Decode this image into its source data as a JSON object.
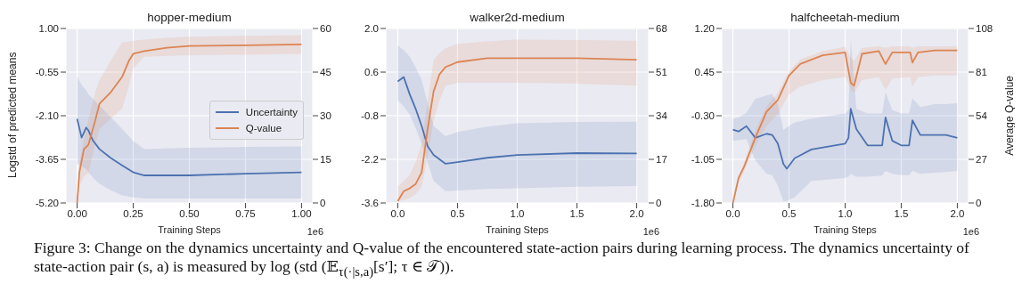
{
  "chart_data": [
    {
      "type": "line",
      "title": "hopper-medium",
      "xlabel": "Training Steps",
      "ylabel": "Logstd of predicted means",
      "annotations": [
        "1e6",
        "Figure 3: Change on the dynamics uncertainty and Q-value of the encountered state-action pairs during learning process. The dynamics uncertainty of state-action pair (s, a) is measured by log (std (𝔼$_{τ(·|s,a)}$[s′]; τ ∈ 𝒯))."
      ],
      "xlim": [
        -0.05,
        1.05
      ],
      "xticks": [
        {
          "value": 0,
          "label": "0.00"
        },
        0.25,
        {
          "value": 0.5,
          "label": "0.50"
        },
        0.75,
        {
          "value": 1,
          "label": "1.00"
        }
      ],
      "ylim": [
        -5.2,
        1
      ],
      "yticks": [
        {
          "value": -5.2,
          "label": "-5.20"
        },
        -3.65,
        {
          "value": -2.1,
          "label": "-2.10"
        },
        -0.55,
        {
          "value": 1,
          "label": "1.00"
        }
      ],
      "y2lim": [
        0,
        60
      ],
      "y2ticks": [
        0,
        15,
        30,
        45,
        60
      ],
      "grid": true,
      "legend": "right",
      "series": [
        {
          "name": "Uncertainty",
          "color": "#4c72b0",
          "axis": "y",
          "x": [
            0,
            0.02,
            0.04,
            0.05,
            0.07,
            0.1,
            0.15,
            0.2,
            0.25,
            0.3,
            0.5,
            0.75,
            1.0
          ],
          "values": [
            -2.21,
            -2.88,
            -2.52,
            -2.62,
            -2.98,
            -3.29,
            -3.6,
            -3.86,
            -4.11,
            -4.22,
            -4.22,
            -4.16,
            -4.11
          ],
          "upper": [
            -0.72,
            -1.0,
            -1.2,
            -1.34,
            -1.5,
            -1.75,
            -2.15,
            -2.57,
            -3.0,
            -3.29,
            -3.24,
            -3.21,
            -3.19
          ],
          "lower": [
            -3.8,
            -3.9,
            -4.0,
            -4.11,
            -4.3,
            -4.52,
            -4.75,
            -4.93,
            -5.0,
            -5.04,
            -5.04,
            -5.04,
            -5.04
          ]
        },
        {
          "name": "Q-value",
          "color": "#dd8452",
          "axis": "y2",
          "x": [
            0,
            0.01,
            0.03,
            0.05,
            0.08,
            0.1,
            0.15,
            0.2,
            0.23,
            0.25,
            0.3,
            0.4,
            0.5,
            0.75,
            1.0
          ],
          "values": [
            0,
            10.5,
            18.5,
            20,
            28.2,
            34.2,
            38.1,
            43.3,
            48.8,
            51.3,
            52.2,
            53.4,
            54,
            54.2,
            54.5
          ],
          "upper": [
            0,
            14,
            22,
            28.4,
            38,
            42.3,
            49,
            55.2,
            55.5,
            55.8,
            56.2,
            56.8,
            57.2,
            57.5,
            57.7
          ],
          "lower": [
            0,
            6,
            9,
            10.5,
            20,
            25.4,
            29,
            32.4,
            40,
            46.3,
            50.3,
            50.6,
            50.8,
            51,
            51.3
          ]
        }
      ]
    },
    {
      "type": "line",
      "title": "walker2d-medium",
      "xlabel": "Training Steps",
      "annotations": [
        "1e6"
      ],
      "xlim": [
        -0.1,
        2.1
      ],
      "xticks": [
        {
          "value": 0,
          "label": "0.0"
        },
        0.5,
        {
          "value": 1,
          "label": "1.0"
        },
        1.5,
        {
          "value": 2,
          "label": "2.0"
        }
      ],
      "ylim": [
        -3.6,
        2
      ],
      "yticks": [
        -3.6,
        -2.2,
        -0.8,
        0.6,
        {
          "value": 2,
          "label": "2.0"
        }
      ],
      "y2lim": [
        0,
        68
      ],
      "y2ticks": [
        0,
        17,
        34,
        51,
        68
      ],
      "grid": true,
      "series": [
        {
          "color": "#4c72b0",
          "axis": "y",
          "x": [
            0,
            0.05,
            0.1,
            0.15,
            0.2,
            0.25,
            0.3,
            0.4,
            0.5,
            0.75,
            1.0,
            1.5,
            2.0
          ],
          "values": [
            0.3,
            0.44,
            -0.11,
            -0.58,
            -1.13,
            -1.78,
            -2.06,
            -2.34,
            -2.29,
            -2.15,
            -2.06,
            -2.0,
            -2.01
          ],
          "upper": [
            1.46,
            1.3,
            1.09,
            0.75,
            0.35,
            -0.4,
            -1.13,
            -1.46,
            -1.32,
            -1.15,
            -1.04,
            -1.0,
            -0.99
          ],
          "lower": [
            -0.3,
            -0.5,
            -0.76,
            -1.2,
            -1.69,
            -2.3,
            -2.89,
            -3.22,
            -3.2,
            -3.15,
            -3.13,
            -3.08,
            -3.06
          ]
        },
        {
          "color": "#dd8452",
          "axis": "y2",
          "x": [
            0,
            0.05,
            0.1,
            0.15,
            0.2,
            0.25,
            0.3,
            0.35,
            0.4,
            0.5,
            0.75,
            1.0,
            1.5,
            2.0
          ],
          "values": [
            0.7,
            4.6,
            5.7,
            7.4,
            11.9,
            28.8,
            43.5,
            50.2,
            53,
            54.9,
            56.4,
            56.4,
            56.4,
            55.8
          ],
          "upper": [
            6.3,
            8.5,
            10.8,
            16,
            23.2,
            40,
            55.8,
            58.5,
            60.3,
            62,
            63,
            63.7,
            63.5,
            63.2
          ],
          "lower": [
            0.7,
            1.2,
            1.8,
            3.5,
            6.3,
            18,
            32.2,
            40,
            45.7,
            46.8,
            46.8,
            46.8,
            46.5,
            45.7
          ]
        }
      ]
    },
    {
      "type": "line",
      "title": "halfcheetah-medium",
      "xlabel": "Training Steps",
      "y2label": "Average Q-value",
      "annotations": [
        "1e6"
      ],
      "xlim": [
        -0.1,
        2.1
      ],
      "xticks": [
        {
          "value": 0,
          "label": "0.0"
        },
        0.5,
        {
          "value": 1,
          "label": "1.0"
        },
        1.5,
        {
          "value": 2,
          "label": "2.0"
        }
      ],
      "ylim": [
        -1.8,
        1.2
      ],
      "yticks": [
        {
          "value": -1.8,
          "label": "-1.80"
        },
        -1.05,
        {
          "value": -0.3,
          "label": "-0.30"
        },
        0.45,
        {
          "value": 1.2,
          "label": "1.20"
        }
      ],
      "y2lim": [
        0,
        108
      ],
      "y2ticks": [
        0,
        27,
        54,
        81,
        108
      ],
      "grid": true,
      "series": [
        {
          "color": "#4c72b0",
          "axis": "y",
          "x": [
            0,
            0.05,
            0.12,
            0.2,
            0.3,
            0.35,
            0.4,
            0.45,
            0.48,
            0.55,
            0.7,
            1.0,
            1.03,
            1.05,
            1.1,
            1.2,
            1.33,
            1.36,
            1.42,
            1.5,
            1.57,
            1.6,
            1.67,
            1.8,
            1.9,
            2.0
          ],
          "values": [
            -0.54,
            -0.57,
            -0.48,
            -0.68,
            -0.61,
            -0.63,
            -0.78,
            -1.13,
            -1.21,
            -1.03,
            -0.88,
            -0.78,
            -0.68,
            -0.18,
            -0.53,
            -0.81,
            -0.81,
            -0.33,
            -0.73,
            -0.81,
            -0.81,
            -0.38,
            -0.63,
            -0.63,
            -0.63,
            -0.68
          ],
          "upper": [
            -0.35,
            -0.33,
            -0.25,
            -0.01,
            0.05,
            0.07,
            -0.1,
            -0.55,
            -0.5,
            -0.42,
            -0.35,
            -0.26,
            -0.2,
            1.01,
            -0.18,
            -0.26,
            -0.26,
            0.1,
            -0.2,
            -0.26,
            -0.26,
            0.0,
            -0.15,
            -0.1,
            -0.1,
            -0.08
          ],
          "lower": [
            -0.73,
            -0.72,
            -0.7,
            -1.07,
            -1.3,
            -1.32,
            -1.5,
            -1.77,
            -1.77,
            -1.7,
            -1.42,
            -1.37,
            -1.35,
            -1.3,
            -1.35,
            -1.35,
            -1.33,
            -1.25,
            -1.3,
            -1.32,
            -1.32,
            -1.25,
            -1.3,
            -1.28,
            -1.27,
            -1.25
          ]
        },
        {
          "color": "#dd8452",
          "axis": "y2",
          "x": [
            0,
            0.05,
            0.1,
            0.2,
            0.3,
            0.4,
            0.5,
            0.6,
            0.8,
            1.0,
            1.05,
            1.08,
            1.15,
            1.3,
            1.36,
            1.42,
            1.58,
            1.6,
            1.65,
            1.8,
            2.0
          ],
          "values": [
            0,
            15.4,
            22.5,
            40.4,
            56.5,
            63.7,
            78.9,
            86,
            91.4,
            93.2,
            74.4,
            72.6,
            92.3,
            94,
            86,
            93.2,
            93.2,
            86.9,
            93.2,
            94.4,
            94.4
          ],
          "upper": [
            0,
            17,
            25,
            45,
            60,
            68,
            81.5,
            89,
            94,
            96.7,
            90,
            88,
            96,
            97,
            96,
            97,
            97,
            96,
            97,
            97,
            97
          ],
          "lower": [
            0,
            13,
            20,
            35,
            47.6,
            55,
            67.2,
            72,
            76,
            78,
            70.8,
            68,
            76,
            78,
            70,
            77,
            78,
            72,
            78,
            78.9,
            78.9
          ]
        }
      ]
    }
  ]
}
